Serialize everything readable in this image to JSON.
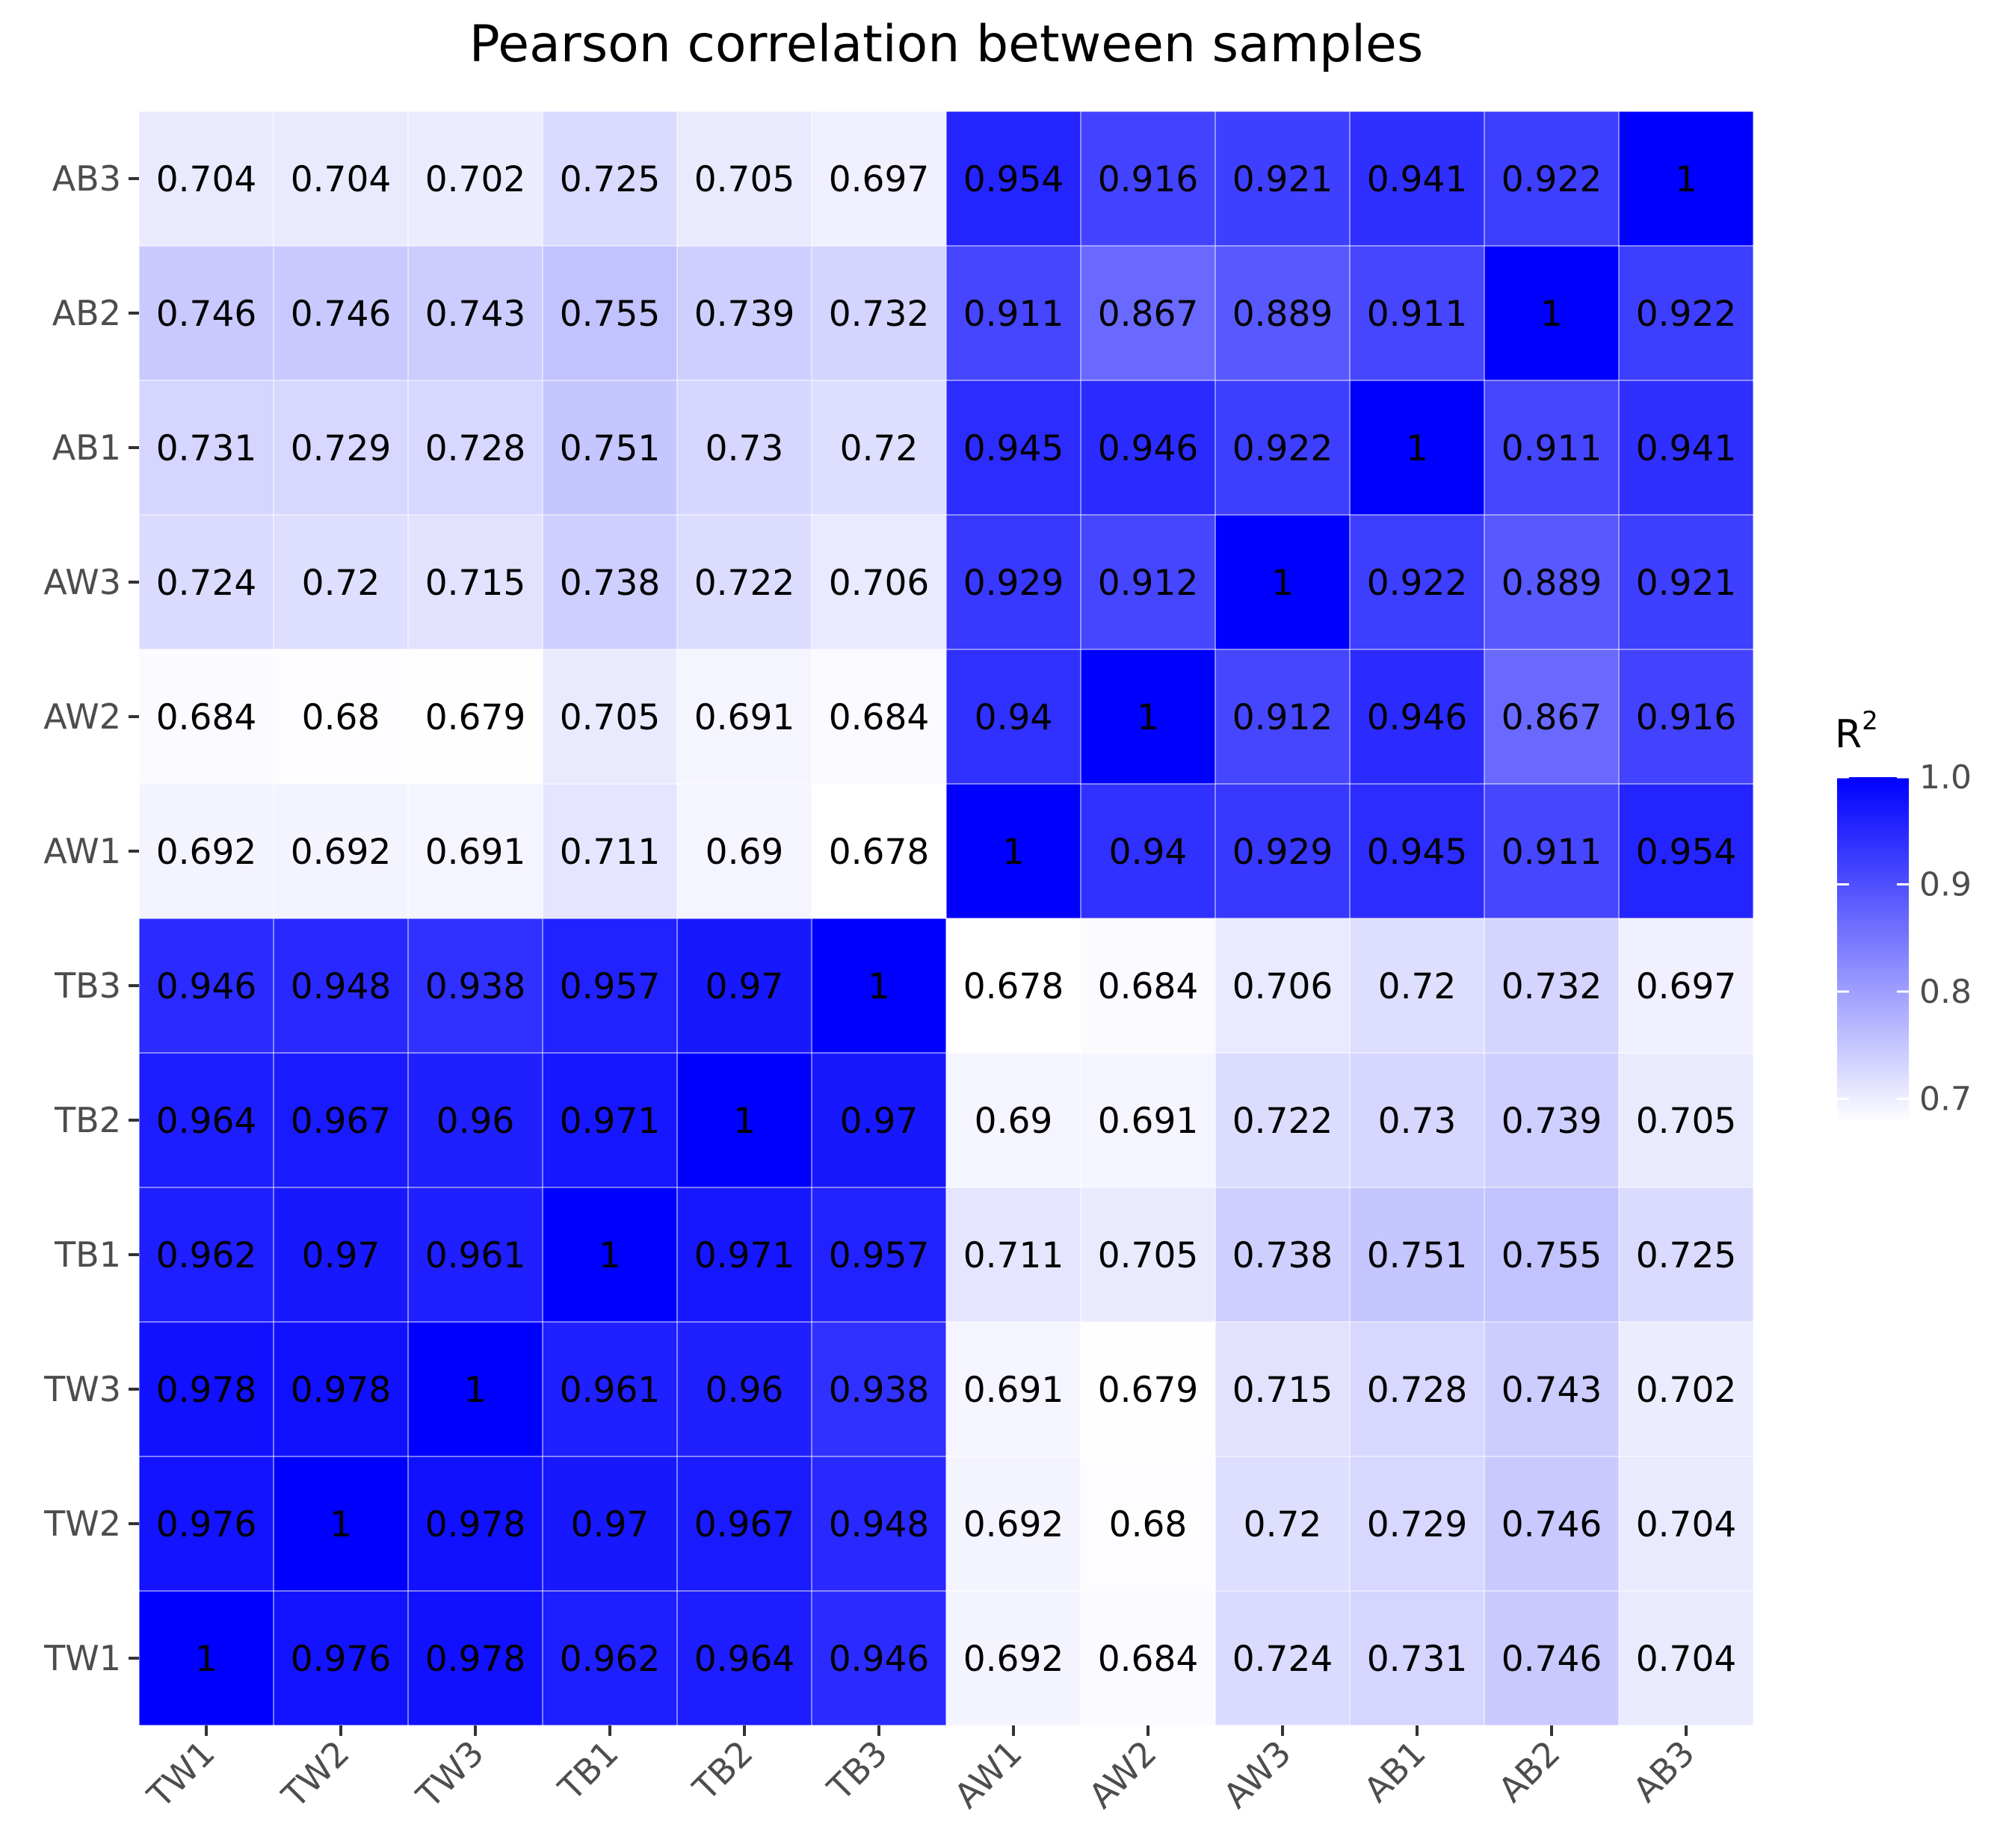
{
  "chart_data": {
    "type": "heatmap",
    "title": "Pearson correlation between samples",
    "xlabel": "",
    "ylabel": "",
    "x_categories": [
      "TW1",
      "TW2",
      "TW3",
      "TB1",
      "TB2",
      "TB3",
      "AW1",
      "AW2",
      "AW3",
      "AB1",
      "AB2",
      "AB3"
    ],
    "y_categories_top_to_bottom": [
      "AB3",
      "AB2",
      "AB1",
      "AW3",
      "AW2",
      "AW1",
      "TB3",
      "TB2",
      "TB1",
      "TW3",
      "TW2",
      "TW1"
    ],
    "values": [
      [
        "0.704",
        "0.704",
        "0.702",
        "0.725",
        "0.705",
        "0.697",
        "0.954",
        "0.916",
        "0.921",
        "0.941",
        "0.922",
        "1"
      ],
      [
        "0.746",
        "0.746",
        "0.743",
        "0.755",
        "0.739",
        "0.732",
        "0.911",
        "0.867",
        "0.889",
        "0.911",
        "1",
        "0.922"
      ],
      [
        "0.731",
        "0.729",
        "0.728",
        "0.751",
        "0.73",
        "0.72",
        "0.945",
        "0.946",
        "0.922",
        "1",
        "0.911",
        "0.941"
      ],
      [
        "0.724",
        "0.72",
        "0.715",
        "0.738",
        "0.722",
        "0.706",
        "0.929",
        "0.912",
        "1",
        "0.922",
        "0.889",
        "0.921"
      ],
      [
        "0.684",
        "0.68",
        "0.679",
        "0.705",
        "0.691",
        "0.684",
        "0.94",
        "1",
        "0.912",
        "0.946",
        "0.867",
        "0.916"
      ],
      [
        "0.692",
        "0.692",
        "0.691",
        "0.711",
        "0.69",
        "0.678",
        "1",
        "0.94",
        "0.929",
        "0.945",
        "0.911",
        "0.954"
      ],
      [
        "0.946",
        "0.948",
        "0.938",
        "0.957",
        "0.97",
        "1",
        "0.678",
        "0.684",
        "0.706",
        "0.72",
        "0.732",
        "0.697"
      ],
      [
        "0.964",
        "0.967",
        "0.96",
        "0.971",
        "1",
        "0.97",
        "0.69",
        "0.691",
        "0.722",
        "0.73",
        "0.739",
        "0.705"
      ],
      [
        "0.962",
        "0.97",
        "0.961",
        "1",
        "0.971",
        "0.957",
        "0.711",
        "0.705",
        "0.738",
        "0.751",
        "0.755",
        "0.725"
      ],
      [
        "0.978",
        "0.978",
        "1",
        "0.961",
        "0.96",
        "0.938",
        "0.691",
        "0.679",
        "0.715",
        "0.728",
        "0.743",
        "0.702"
      ],
      [
        "0.976",
        "1",
        "0.978",
        "0.97",
        "0.967",
        "0.948",
        "0.692",
        "0.68",
        "0.72",
        "0.729",
        "0.746",
        "0.704"
      ],
      [
        "1",
        "0.976",
        "0.978",
        "0.962",
        "0.964",
        "0.946",
        "0.692",
        "0.684",
        "0.724",
        "0.731",
        "0.746",
        "0.704"
      ]
    ],
    "color_scale": {
      "low_color": "#ffffff",
      "high_color": "#0000ff",
      "min": 0.678,
      "max": 1.0
    },
    "legend": {
      "title_base": "R",
      "title_superscript": "2",
      "ticks": [
        "1.0",
        "0.9",
        "0.8",
        "0.7"
      ],
      "tick_values": [
        1.0,
        0.9,
        0.8,
        0.7
      ],
      "placement": "right"
    },
    "grid": true
  }
}
